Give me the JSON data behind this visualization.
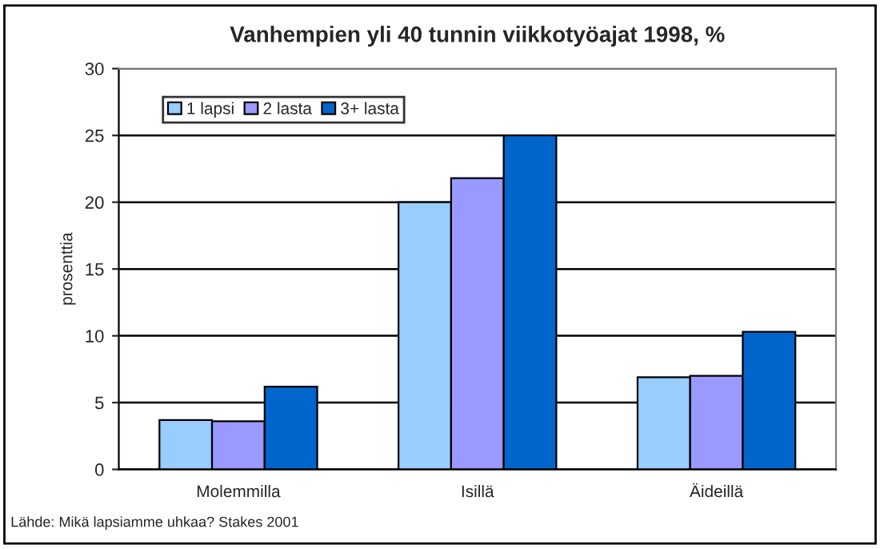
{
  "chart_data": {
    "type": "bar",
    "title": "Vanhempien yli 40 tunnin viikkotyöajat 1998, %",
    "ylabel": "prosenttia",
    "categories": [
      "Molemmilla",
      "Isillä",
      "Äideillä"
    ],
    "series": [
      {
        "name": "1 lapsi",
        "color": "#99ccff",
        "values": [
          3.7,
          20.0,
          6.9
        ]
      },
      {
        "name": "2 lasta",
        "color": "#9999ff",
        "values": [
          3.6,
          21.8,
          7.0
        ]
      },
      {
        "name": "3+ lasta",
        "color": "#0066cc",
        "values": [
          6.2,
          25.0,
          10.3
        ]
      }
    ],
    "ylim": [
      0,
      30
    ],
    "yticks": [
      0,
      5,
      10,
      15,
      20,
      25,
      30
    ],
    "grid": "y",
    "legend": "top left",
    "annotations": [
      "Lähde: Mikä lapsiamme uhkaa? Stakes 2001"
    ]
  }
}
